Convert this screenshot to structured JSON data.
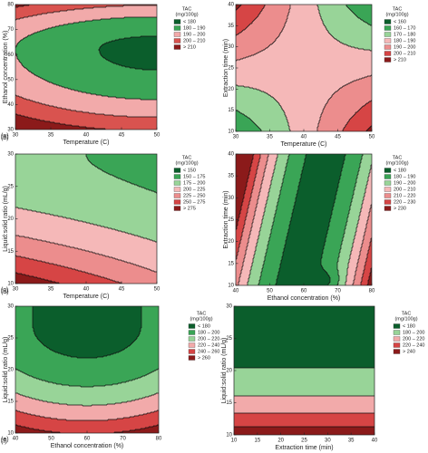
{
  "chart_data": [
    {
      "type": "contour",
      "panel_label": "(a)",
      "x_label": "Temperature (C)",
      "y_label": "Ethanol concentration (%)",
      "xlim": [
        30,
        50
      ],
      "ylim": [
        30,
        80
      ],
      "xticks": [
        30,
        35,
        40,
        45,
        50
      ],
      "yticks": [
        30,
        40,
        50,
        60,
        70,
        80
      ],
      "legend_title": "TAC",
      "legend_subtitle": "(mg/100g)",
      "levels": [
        180,
        190,
        200,
        210
      ],
      "legend": [
        {
          "label": "< 180",
          "color": "#0b5e2c"
        },
        {
          "label": "180 – 190",
          "color": "#3aa556"
        },
        {
          "label": "190 – 200",
          "color": "#f2aaaa"
        },
        {
          "label": "200 – 210",
          "color": "#d9534f"
        },
        {
          "label": "> 210",
          "color": "#8b1a1a"
        }
      ]
    },
    {
      "type": "contour",
      "panel_label": "(b)",
      "x_label": "Temperature (C)",
      "y_label": "Extraction time (min)",
      "xlim": [
        30,
        50
      ],
      "ylim": [
        10,
        40
      ],
      "xticks": [
        30,
        35,
        40,
        45,
        50
      ],
      "yticks": [
        10,
        15,
        20,
        25,
        30,
        35,
        40
      ],
      "legend_title": "TAC",
      "legend_subtitle": "(mg/100g)",
      "levels": [
        160,
        170,
        180,
        190,
        200,
        210
      ],
      "legend": [
        {
          "label": "< 160",
          "color": "#0b5e2c"
        },
        {
          "label": "160 – 170",
          "color": "#3aa556"
        },
        {
          "label": "170 – 180",
          "color": "#98d498"
        },
        {
          "label": "180 – 190",
          "color": "#f5b8b8"
        },
        {
          "label": "190 – 200",
          "color": "#ec8d8d"
        },
        {
          "label": "200 – 210",
          "color": "#d64545"
        },
        {
          "label": "> 210",
          "color": "#8b1a1a"
        }
      ]
    },
    {
      "type": "contour",
      "panel_label": "(c)",
      "x_label": "Temperature (C)",
      "y_label": "Liquid:solid ratio (mL/g)",
      "xlim": [
        30,
        50
      ],
      "ylim": [
        10,
        30
      ],
      "xticks": [
        30,
        35,
        40,
        45,
        50
      ],
      "yticks": [
        10,
        15,
        20,
        25,
        30
      ],
      "legend_title": "TAC",
      "legend_subtitle": "(mg/100g)",
      "levels": [
        150,
        175,
        200,
        225,
        250,
        275
      ],
      "legend": [
        {
          "label": "< 150",
          "color": "#0b5e2c"
        },
        {
          "label": "150 – 175",
          "color": "#3aa556"
        },
        {
          "label": "175 – 200",
          "color": "#98d498"
        },
        {
          "label": "200 – 225",
          "color": "#f5b8b8"
        },
        {
          "label": "225 – 250",
          "color": "#ec8d8d"
        },
        {
          "label": "250 – 275",
          "color": "#d64545"
        },
        {
          "label": "> 275",
          "color": "#8b1a1a"
        }
      ]
    },
    {
      "type": "contour",
      "panel_label": "(d)",
      "x_label": "Ethanol concentration (%)",
      "y_label": "Extraction time (min)",
      "xlim": [
        40,
        80
      ],
      "ylim": [
        10,
        40
      ],
      "xticks": [
        40,
        50,
        60,
        70,
        80
      ],
      "yticks": [
        10,
        15,
        20,
        25,
        30,
        35,
        40
      ],
      "legend_title": "TAC",
      "legend_subtitle": "(mg/100g)",
      "levels": [
        180,
        190,
        200,
        210,
        220,
        230
      ],
      "legend": [
        {
          "label": "< 180",
          "color": "#0b5e2c"
        },
        {
          "label": "180 – 190",
          "color": "#3aa556"
        },
        {
          "label": "190 – 200",
          "color": "#98d498"
        },
        {
          "label": "200 – 210",
          "color": "#f5b8b8"
        },
        {
          "label": "210 – 220",
          "color": "#ec8d8d"
        },
        {
          "label": "220 – 230",
          "color": "#d64545"
        },
        {
          "label": "> 230",
          "color": "#8b1a1a"
        }
      ]
    },
    {
      "type": "contour",
      "panel_label": "(e)",
      "x_label": "Ethanol concentration (%)",
      "y_label": "Liquid:solid ratio (mL/g)",
      "xlim": [
        40,
        80
      ],
      "ylim": [
        10,
        30
      ],
      "xticks": [
        40,
        50,
        60,
        70,
        80
      ],
      "yticks": [
        10,
        15,
        20,
        25,
        30
      ],
      "legend_title": "TAC",
      "legend_subtitle": "(mg/100g)",
      "levels": [
        180,
        200,
        220,
        240,
        260
      ],
      "legend": [
        {
          "label": "< 180",
          "color": "#0b5e2c"
        },
        {
          "label": "180 – 200",
          "color": "#3aa556"
        },
        {
          "label": "200 – 220",
          "color": "#98d498"
        },
        {
          "label": "220 – 240",
          "color": "#f2aaaa"
        },
        {
          "label": "240 – 260",
          "color": "#d64545"
        },
        {
          "label": "> 260",
          "color": "#8b1a1a"
        }
      ]
    },
    {
      "type": "contour",
      "panel_label": "(f)",
      "x_label": "Extraction time (min)",
      "y_label": "Liquid:solid ratio (mL/g)",
      "xlim": [
        10,
        40
      ],
      "ylim": [
        10,
        30
      ],
      "xticks": [
        10,
        15,
        20,
        25,
        30,
        35,
        40
      ],
      "yticks": [
        10,
        15,
        20,
        25,
        30
      ],
      "legend_title": "TAC",
      "legend_subtitle": "(mg/100g)",
      "levels": [
        180,
        200,
        220,
        240
      ],
      "legend": [
        {
          "label": "< 180",
          "color": "#0b5e2c"
        },
        {
          "label": "180 – 200",
          "color": "#98d498"
        },
        {
          "label": "200 – 220",
          "color": "#f2aaaa"
        },
        {
          "label": "220 – 240",
          "color": "#d64545"
        },
        {
          "label": "> 240",
          "color": "#8b1a1a"
        }
      ]
    }
  ]
}
